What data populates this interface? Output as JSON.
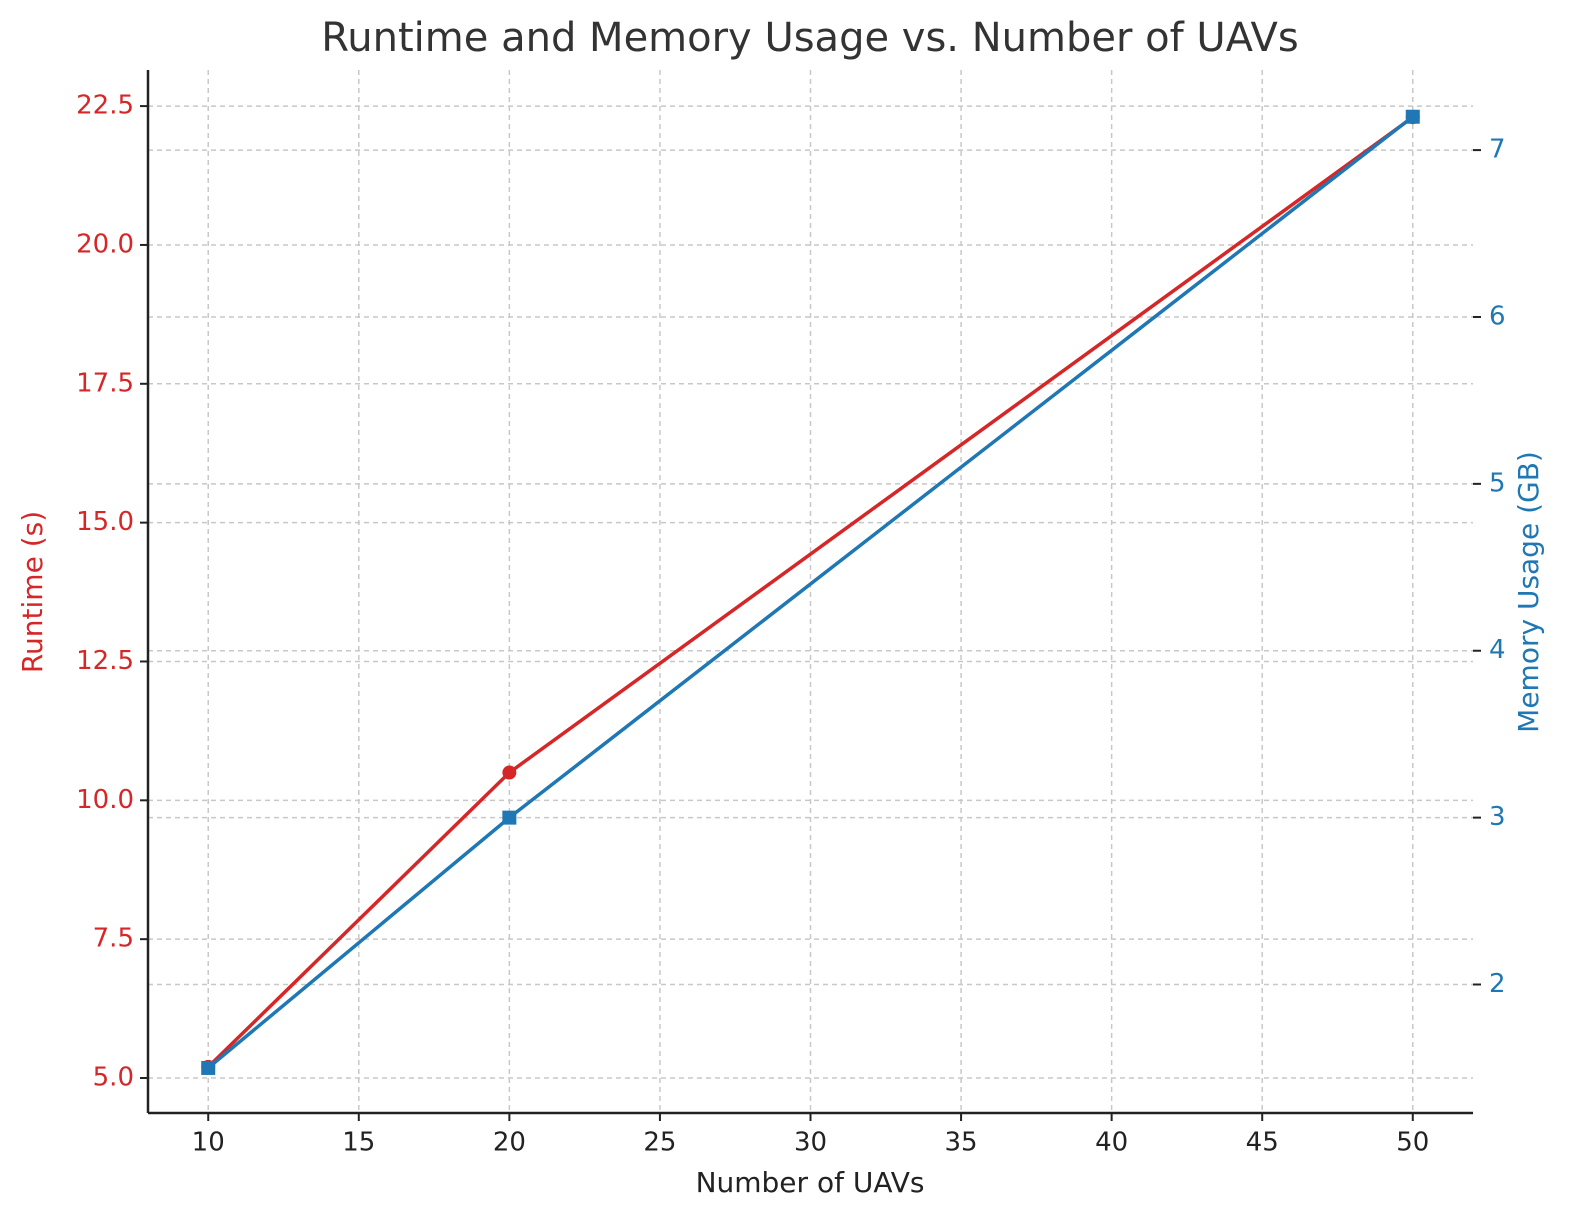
{
  "chart_data": {
    "type": "line",
    "title": "Runtime and Memory Usage vs. Number of UAVs",
    "xlabel": "Number of UAVs",
    "ylabel": "Runtime (s)",
    "y2label": "Memory Usage (GB)",
    "x": [
      10,
      20,
      50
    ],
    "series": [
      {
        "name": "Runtime (s)",
        "color": "#d62728",
        "marker": "circle",
        "values": [
          5.2,
          10.5,
          22.3
        ]
      },
      {
        "name": "Memory Usage (GB)",
        "color": "#1f77b4",
        "marker": "square",
        "axis": "y2",
        "values": [
          1.5,
          3.0,
          7.2
        ]
      }
    ],
    "xlim": [
      8,
      52
    ],
    "xticks": [
      10,
      15,
      20,
      25,
      30,
      35,
      40,
      45,
      50
    ],
    "ylim": [
      4.37,
      23.15
    ],
    "yticks": [
      {
        "value": 5,
        "label": "5.0"
      },
      7.5,
      {
        "value": 10,
        "label": "10.0"
      },
      12.5,
      {
        "value": 15,
        "label": "15.0"
      },
      17.5,
      {
        "value": 20,
        "label": "20.0"
      },
      22.5
    ],
    "y2lim": [
      1.23,
      7.48
    ],
    "y2ticks": [
      2,
      3,
      4,
      5,
      6,
      7
    ],
    "grid": true
  }
}
